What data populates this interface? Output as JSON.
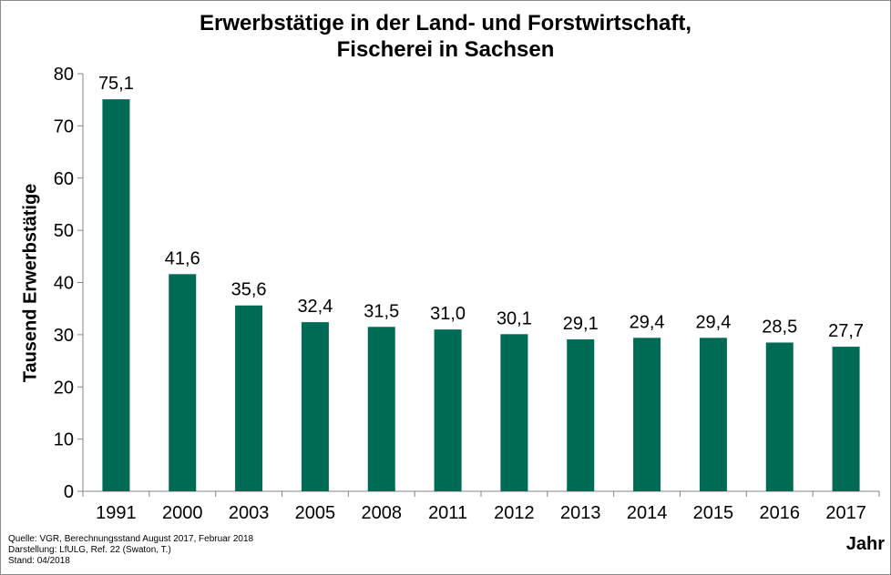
{
  "chart_data": {
    "type": "bar",
    "title_lines": [
      "Erwerbstätige in der Land- und Forstwirtschaft,",
      "Fischerei in Sachsen"
    ],
    "xlabel": "Jahr",
    "ylabel": "Tausend Erwerbstätige",
    "categories": [
      "1991",
      "2000",
      "2003",
      "2005",
      "2008",
      "2011",
      "2012",
      "2013",
      "2014",
      "2015",
      "2016",
      "2017"
    ],
    "values": [
      75.1,
      41.6,
      35.6,
      32.4,
      31.5,
      31.0,
      30.1,
      29.1,
      29.4,
      29.4,
      28.5,
      27.7
    ],
    "data_labels": [
      "75,1",
      "41,6",
      "35,6",
      "32,4",
      "31,5",
      "31,0",
      "30,1",
      "29,1",
      "29,4",
      "29,4",
      "28,5",
      "27,7"
    ],
    "ylim": [
      0,
      80
    ],
    "yticks": [
      0,
      10,
      20,
      30,
      40,
      50,
      60,
      70,
      80
    ],
    "grid": false,
    "legend": "none",
    "bar_color": "#006b54"
  },
  "source_lines": [
    "Quelle: VGR, Berechnungsstand August 2017, Februar 2018",
    "Darstellung: LfULG, Ref. 22 (Swaton, T.)",
    "Stand: 04/2018"
  ]
}
